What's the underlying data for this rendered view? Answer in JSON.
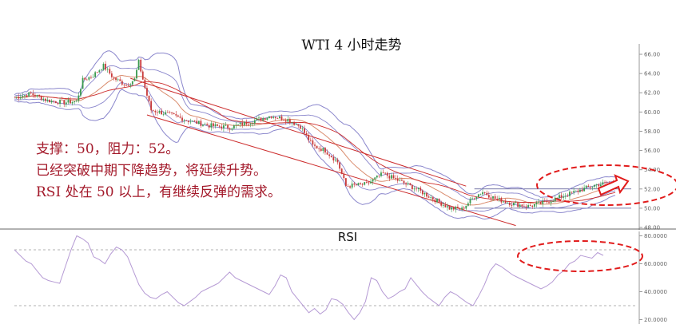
{
  "annotations": {
    "lines": [
      "支撑：50，阻力：52。",
      "已经突破中期下降趋势，将延续升势。",
      "RSI 处在 50 以上，有继续反弹的需求。"
    ]
  },
  "colors": {
    "bull": "#3a9a4f",
    "bear": "#c83a3a",
    "band": "#8a86cc",
    "ma": "#d98b6c",
    "trend": "#cc2b2b",
    "rsi": "#b59ad4",
    "ellipse": "#e11b1b",
    "annotation": "#a3192a",
    "grid": "#999999"
  },
  "chart_data": [
    {
      "type": "candlestick",
      "title": "WTI 4 小时走势",
      "ylim": [
        48,
        66.5
      ],
      "yticks": [
        48,
        50,
        52,
        54,
        56,
        58,
        60,
        62,
        64,
        66
      ],
      "ytick_labels": [
        "48.00",
        "50.00",
        "52.00",
        "54.00",
        "56.00",
        "58.00",
        "60.00",
        "62.00",
        "64.00",
        "66.00"
      ],
      "support": 50,
      "resistance": 52,
      "close_path": [
        [
          0,
          61.5
        ],
        [
          8,
          61.9
        ],
        [
          16,
          61.2
        ],
        [
          24,
          61.0
        ],
        [
          30,
          61.1
        ],
        [
          33,
          63.3
        ],
        [
          38,
          63.8
        ],
        [
          43,
          64.8
        ],
        [
          48,
          63.5
        ],
        [
          54,
          62.8
        ],
        [
          58,
          63.4
        ],
        [
          60,
          65.2
        ],
        [
          63,
          62.5
        ],
        [
          66,
          60.2
        ],
        [
          74,
          59.8
        ],
        [
          84,
          59.1
        ],
        [
          94,
          58.6
        ],
        [
          104,
          58.4
        ],
        [
          114,
          59.0
        ],
        [
          124,
          59.6
        ],
        [
          132,
          59.2
        ],
        [
          138,
          58.5
        ],
        [
          144,
          56.5
        ],
        [
          150,
          56.0
        ],
        [
          156,
          54.8
        ],
        [
          160,
          52.3
        ],
        [
          170,
          52.5
        ],
        [
          178,
          53.6
        ],
        [
          186,
          52.8
        ],
        [
          194,
          52.0
        ],
        [
          202,
          51.0
        ],
        [
          210,
          50.0
        ],
        [
          216,
          49.9
        ],
        [
          222,
          51.2
        ],
        [
          226,
          51.7
        ],
        [
          232,
          51.0
        ],
        [
          240,
          50.5
        ],
        [
          248,
          50.2
        ],
        [
          256,
          50.6
        ],
        [
          264,
          51.2
        ],
        [
          272,
          51.8
        ],
        [
          280,
          52.4
        ],
        [
          286,
          52.6
        ],
        [
          290,
          52.5
        ]
      ],
      "downtrend_upper": [
        [
          56,
          63.5
        ],
        [
          218,
          52.3
        ]
      ],
      "downtrend_lower": [
        [
          64,
          59.7
        ],
        [
          242,
          48.2
        ]
      ]
    },
    {
      "type": "line",
      "title": "RSI",
      "ylim": [
        18,
        82
      ],
      "yticks": [
        20,
        40,
        60,
        80
      ],
      "ytick_labels": [
        "20.0000",
        "40.0000",
        "60.0000",
        "80.0000"
      ],
      "reference_levels": [
        30,
        70
      ],
      "series": [
        {
          "values": [
            70,
            66,
            62,
            60,
            55,
            50,
            48,
            47,
            46,
            58,
            70,
            80,
            78,
            75,
            65,
            63,
            60,
            67,
            72,
            70,
            65,
            55,
            45,
            39,
            36,
            35,
            38,
            40,
            36,
            32,
            30,
            33,
            36,
            40,
            42,
            44,
            46,
            50,
            54,
            50,
            48,
            46,
            44,
            42,
            40,
            38,
            44,
            52,
            50,
            40,
            35,
            30,
            25,
            28,
            24,
            27,
            35,
            34,
            31,
            25,
            20,
            25,
            33,
            50,
            48,
            40,
            35,
            37,
            40,
            42,
            50,
            45,
            40,
            36,
            33,
            30,
            36,
            40,
            38,
            35,
            32,
            30,
            37,
            45,
            55,
            60,
            58,
            55,
            52,
            50,
            48,
            46,
            44,
            42,
            44,
            47,
            52,
            55,
            60,
            62,
            66,
            65,
            64,
            68,
            66
          ]
        }
      ]
    }
  ]
}
